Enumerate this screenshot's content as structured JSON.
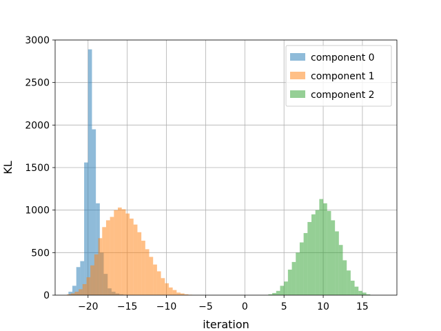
{
  "chart_data": {
    "type": "histogram",
    "xlabel": "iteration",
    "ylabel": "KL",
    "xlim": [
      -24.2,
      19.4
    ],
    "ylim": [
      0,
      3000
    ],
    "xticks": [
      -20,
      -15,
      -10,
      -5,
      0,
      5,
      10,
      15
    ],
    "xtick_labels": [
      "−20",
      "−15",
      "−10",
      "−5",
      "0",
      "5",
      "10",
      "15"
    ],
    "yticks": [
      0,
      500,
      1000,
      1500,
      2000,
      2500,
      3000
    ],
    "ytick_labels": [
      "0",
      "500",
      "1000",
      "1500",
      "2000",
      "2500",
      "3000"
    ],
    "grid": true,
    "legend_position": "top-right",
    "series": [
      {
        "name": "component 0",
        "color": "#1f77b4",
        "alpha": 0.5,
        "bin_start": -22.5,
        "bin_width": 0.5,
        "counts": [
          40,
          110,
          330,
          400,
          1560,
          2890,
          1950,
          1080,
          500,
          250,
          80,
          40,
          20,
          10,
          5,
          3,
          2
        ]
      },
      {
        "name": "component 1",
        "color": "#ff7f0e",
        "alpha": 0.5,
        "bin_width": 0.5,
        "bin_start": -22.7,
        "counts": [
          10,
          20,
          40,
          70,
          130,
          210,
          350,
          480,
          670,
          800,
          880,
          920,
          1000,
          1030,
          1010,
          960,
          900,
          830,
          740,
          640,
          540,
          450,
          360,
          280,
          200,
          140,
          90,
          60,
          30,
          20,
          10,
          5
        ]
      },
      {
        "name": "component 2",
        "color": "#2ca02c",
        "alpha": 0.5,
        "bin_width": 0.5,
        "bin_start": 3.0,
        "counts": [
          10,
          25,
          50,
          110,
          160,
          300,
          390,
          500,
          620,
          730,
          860,
          950,
          1000,
          1130,
          1080,
          990,
          880,
          750,
          590,
          410,
          290,
          170,
          100,
          50,
          30,
          10
        ]
      }
    ]
  }
}
